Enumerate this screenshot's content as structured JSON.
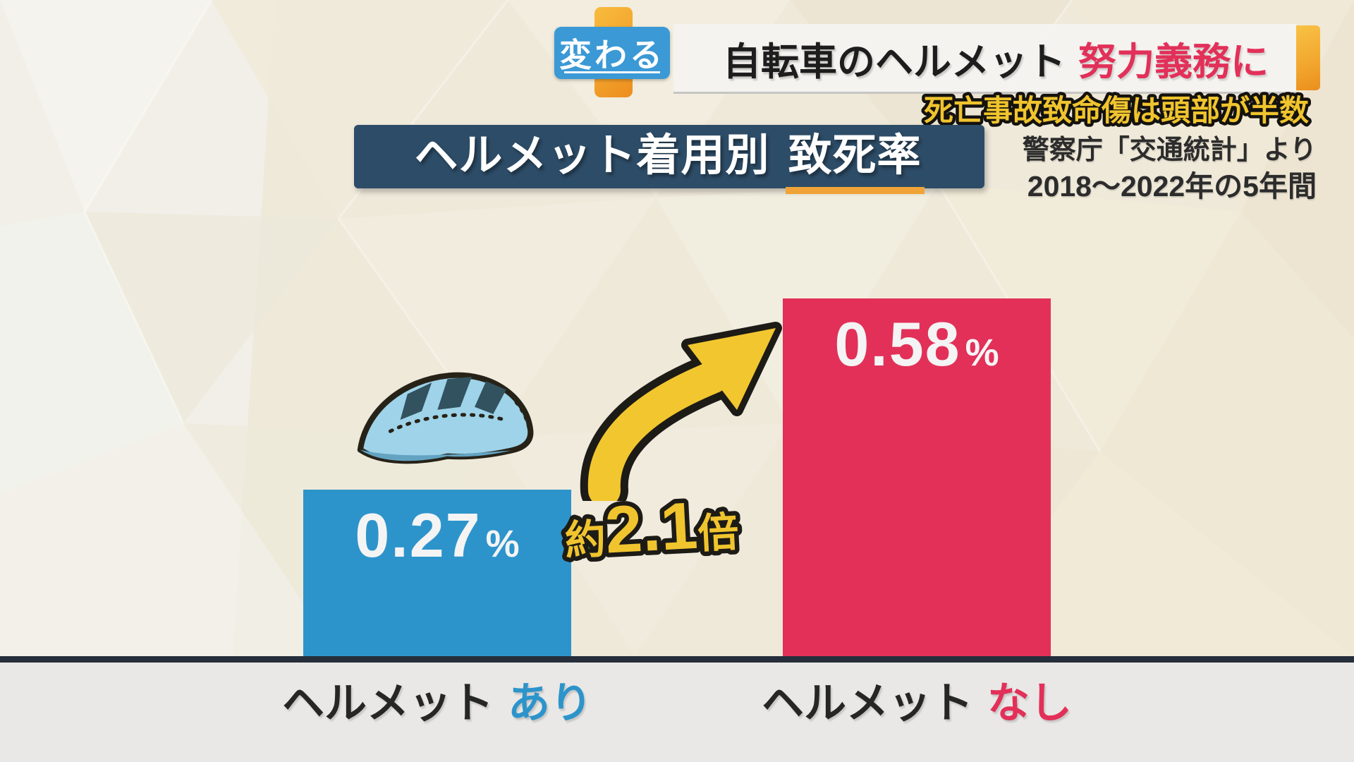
{
  "header": {
    "badge_label": "変わる",
    "title_main": "自転車のヘルメット",
    "title_accent": "努力義務に"
  },
  "subheader": {
    "highlight": "死亡事故致命傷は頭部が半数",
    "source": "警察庁「交通統計」より",
    "period": "2018〜2022年の5年間"
  },
  "chart_title": {
    "prefix": "ヘルメット着用別",
    "emphasis": "致死率"
  },
  "ratio": {
    "prefix": "約",
    "value": "2.1",
    "suffix": "倍"
  },
  "bars": {
    "with_helmet": {
      "value": "0.27",
      "unit": "%",
      "label": "ヘルメット",
      "label_accent": "あり"
    },
    "without_helmet": {
      "value": "0.58",
      "unit": "%",
      "label": "ヘルメット",
      "label_accent": "なし"
    }
  },
  "chart_data": {
    "type": "bar",
    "title": "ヘルメット着用別 致死率",
    "subtitle": "死亡事故致命傷は頭部が半数",
    "source": "警察庁「交通統計」より",
    "period": "2018〜2022年の5年間",
    "categories": [
      "ヘルメット あり",
      "ヘルメット なし"
    ],
    "values": [
      0.27,
      0.58
    ],
    "unit": "%",
    "annotation": "約2.1倍",
    "ylim": [
      0,
      0.62
    ],
    "grid": false,
    "legend": false,
    "bar_colors": [
      "#2d94cb",
      "#e23059"
    ]
  },
  "colors": {
    "accent_red": "#e23059",
    "accent_blue": "#2d94cb",
    "badge_blue": "#3b99d5",
    "highlight_yellow": "#f0c42e",
    "arrow_yellow": "#f2c62f",
    "title_navy": "#2d4c67",
    "underline_orange": "#f0a437",
    "clip_orange": "#f5a92c",
    "separator_navy": "#252e3a"
  }
}
